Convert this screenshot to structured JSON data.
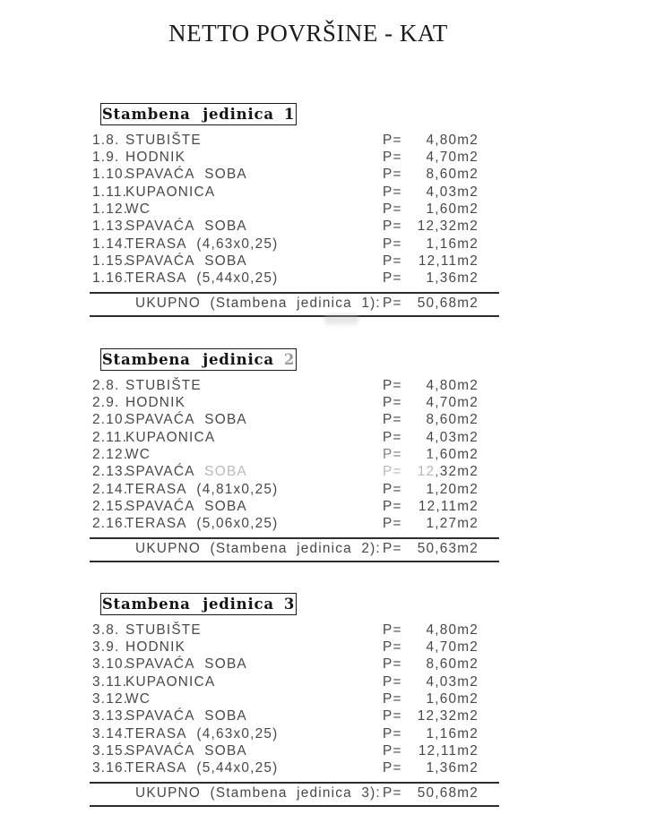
{
  "title": "NETTO POVRŠINE - KAT",
  "area_prefix": "P=",
  "sections": [
    {
      "header_text": "Stambena jedinica",
      "header_num": "1",
      "header_num_color": null,
      "rows": [
        {
          "num": "1.8.",
          "name": "STUBIŠTE",
          "value": "4,80m2"
        },
        {
          "num": "1.9.",
          "name": "HODNIK",
          "value": "4,70m2"
        },
        {
          "num": "1.10.",
          "name": "SPAVAĆA SOBA",
          "value": "8,60m2"
        },
        {
          "num": "1.11.",
          "name": "KUPAONICA",
          "value": "4,03m2"
        },
        {
          "num": "1.12.",
          "name": "WC",
          "value": "1,60m2"
        },
        {
          "num": "1.13.",
          "name": "SPAVAĆA SOBA",
          "value": "12,32m2"
        },
        {
          "num": "1.14.",
          "name": "TERASA (4,63x0,25)",
          "value": "1,16m2"
        },
        {
          "num": "1.15.",
          "name": "SPAVAĆA SOBA",
          "value": "12,11m2"
        },
        {
          "num": "1.16.",
          "name": "TERASA (5,44x0,25)",
          "value": "1,36m2"
        }
      ],
      "total_label": "UKUPNO (Stambena jedinica 1):",
      "total_value": "50,68m2"
    },
    {
      "header_text": "Stambena jedinica",
      "header_num": "2",
      "header_num_color": "#9e9e9e",
      "rows": [
        {
          "num": "2.8.",
          "name": "STUBIŠTE",
          "value": "4,80m2"
        },
        {
          "num": "2.9.",
          "name": "HODNIK",
          "value": "4,70m2"
        },
        {
          "num": "2.10.",
          "name": "SPAVAĆA SOBA",
          "value": "8,60m2"
        },
        {
          "num": "2.11.",
          "name": "KUPAONICA",
          "value": "4,03m2"
        },
        {
          "num": "2.12.",
          "name": "WC",
          "value": "1,60m2"
        },
        {
          "num": "2.13.",
          "name": "SPAVAĆA SOBA",
          "value": "12,32m2"
        },
        {
          "num": "2.14.",
          "name": "TERASA (4,81x0,25)",
          "value": "1,20m2"
        },
        {
          "num": "2.15.",
          "name": "SPAVAĆA SOBA",
          "value": "12,11m2"
        },
        {
          "num": "2.16.",
          "name": "TERASA (5,06x0,25)",
          "value": "1,27m2"
        }
      ],
      "total_label": "UKUPNO (Stambena jedinica 2):",
      "total_value": "50,63m2"
    },
    {
      "header_text": "Stambena jedinica",
      "header_num": "3",
      "header_num_color": null,
      "rows": [
        {
          "num": "3.8.",
          "name": "STUBIŠTE",
          "value": "4,80m2"
        },
        {
          "num": "3.9.",
          "name": "HODNIK",
          "value": "4,70m2"
        },
        {
          "num": "3.10.",
          "name": "SPAVAĆA SOBA",
          "value": "8,60m2"
        },
        {
          "num": "3.11.",
          "name": "KUPAONICA",
          "value": "4,03m2"
        },
        {
          "num": "3.12.",
          "name": "WC",
          "value": "1,60m2"
        },
        {
          "num": "3.13.",
          "name": "SPAVAĆA SOBA",
          "value": "12,32m2"
        },
        {
          "num": "3.14.",
          "name": "TERASA (4,63x0,25)",
          "value": "1,16m2"
        },
        {
          "num": "3.15.",
          "name": "SPAVAĆA SOBA",
          "value": "12,11m2"
        },
        {
          "num": "3.16.",
          "name": "TERASA (5,44x0,25)",
          "value": "1,36m2"
        }
      ],
      "total_label": "UKUPNO (Stambena jedinica 3):",
      "total_value": "50,68m2"
    }
  ]
}
